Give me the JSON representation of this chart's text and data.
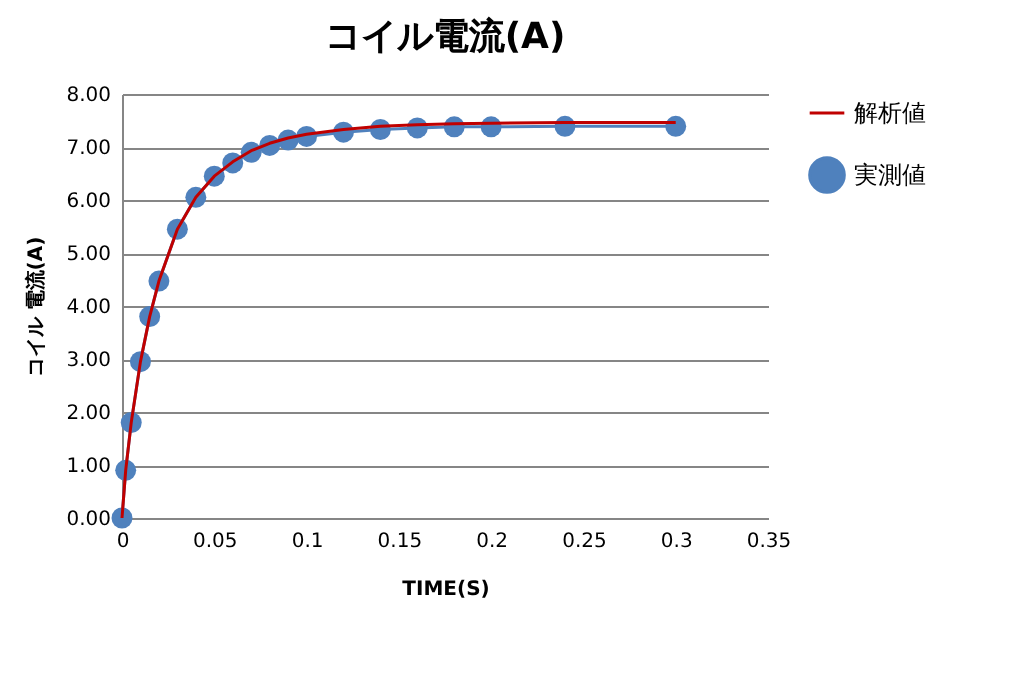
{
  "chart_data": {
    "type": "line",
    "title": "コイル電流(A)",
    "xlabel": "TIME(S)",
    "ylabel": "コイル 電流(A)",
    "x": [
      0,
      0.002,
      0.005,
      0.01,
      0.015,
      0.02,
      0.03,
      0.04,
      0.05,
      0.06,
      0.07,
      0.08,
      0.09,
      0.1,
      0.12,
      0.14,
      0.16,
      0.18,
      0.2,
      0.24,
      0.3
    ],
    "series": [
      {
        "name": "解析値",
        "color": "#c00000",
        "marker": "none",
        "values": [
          0,
          0.9,
          1.8,
          2.95,
          3.8,
          4.47,
          5.45,
          6.05,
          6.45,
          6.72,
          6.93,
          7.07,
          7.17,
          7.24,
          7.33,
          7.39,
          7.42,
          7.44,
          7.45,
          7.46,
          7.46
        ]
      },
      {
        "name": "実測値",
        "color": "#4f81bd",
        "marker": "circle",
        "values": [
          0,
          0.9,
          1.8,
          2.95,
          3.8,
          4.47,
          5.45,
          6.05,
          6.45,
          6.7,
          6.9,
          7.03,
          7.13,
          7.2,
          7.28,
          7.33,
          7.36,
          7.38,
          7.38,
          7.39,
          7.39
        ]
      }
    ],
    "xlim": [
      0,
      0.35
    ],
    "xticks": [
      0,
      0.05,
      0.1,
      0.15,
      0.2,
      0.25,
      0.3,
      0.35
    ],
    "ylim": [
      0,
      8
    ],
    "yticks": [
      {
        "value": 0,
        "label": "0.00"
      },
      {
        "value": 1,
        "label": "1.00"
      },
      {
        "value": 2,
        "label": "2.00"
      },
      {
        "value": 3,
        "label": "3.00"
      },
      {
        "value": 4,
        "label": "4.00"
      },
      {
        "value": 5,
        "label": "5.00"
      },
      {
        "value": 6,
        "label": "6.00"
      },
      {
        "value": 7,
        "label": "7.00"
      },
      {
        "value": 8,
        "label": "8.00"
      }
    ],
    "grid": "y",
    "legend": "right"
  }
}
